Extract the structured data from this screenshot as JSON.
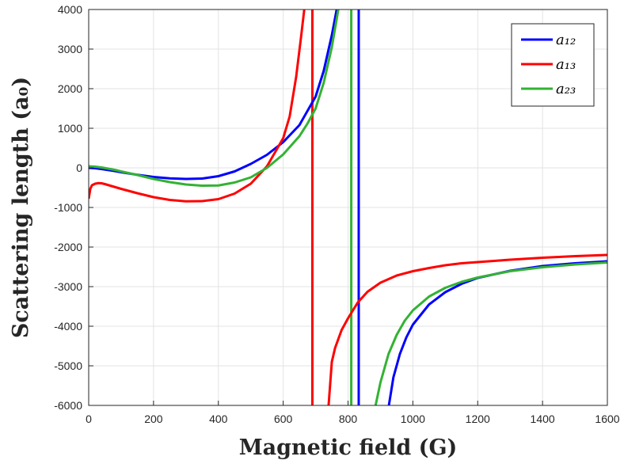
{
  "chart_data": {
    "type": "line",
    "xlabel": "Magnetic field (G)",
    "ylabel": "Scattering length (a₀)",
    "xlim": [
      0,
      1600
    ],
    "ylim": [
      -6000,
      4000
    ],
    "xticks": [
      "0",
      "200",
      "400",
      "600",
      "800",
      "1000",
      "1200",
      "1400",
      "1600"
    ],
    "yticks": [
      "-6000",
      "-5000",
      "-4000",
      "-3000",
      "-2000",
      "-1000",
      "0",
      "1000",
      "2000",
      "3000",
      "4000"
    ],
    "grid": true,
    "legend_position": "top-right",
    "series": [
      {
        "name": "a₁₂",
        "color": "#0000ff",
        "x": [
          0,
          20,
          40,
          60,
          80,
          100,
          150,
          200,
          250,
          300,
          350,
          400,
          450,
          500,
          550,
          600,
          650,
          700,
          725,
          750,
          765,
          775,
          785,
          800,
          820,
          832,
          835,
          850,
          870,
          900,
          920,
          926,
          940,
          960,
          980,
          1000,
          1050,
          1100,
          1150,
          1200,
          1300,
          1400,
          1500,
          1600
        ],
        "y": [
          0,
          -10,
          -30,
          -55,
          -80,
          -110,
          -175,
          -230,
          -265,
          -280,
          -270,
          -210,
          -90,
          100,
          330,
          650,
          1080,
          1800,
          2450,
          3350,
          4000,
          null,
          null,
          null,
          null,
          null,
          null,
          null,
          null,
          null,
          null,
          -6000,
          -5290,
          -4700,
          -4280,
          -3960,
          -3450,
          -3140,
          -2930,
          -2780,
          -2600,
          -2480,
          -2410,
          -2360
        ]
      },
      {
        "name": "a₁₃",
        "color": "#ff0000",
        "x": [
          0,
          5,
          10,
          20,
          30,
          40,
          50,
          75,
          100,
          150,
          200,
          250,
          300,
          350,
          400,
          450,
          500,
          550,
          600,
          620,
          640,
          655,
          665,
          688,
          735,
          740,
          750,
          760,
          780,
          800,
          830,
          860,
          900,
          950,
          1000,
          1050,
          1100,
          1150,
          1200,
          1300,
          1400,
          1500,
          1600
        ],
        "y": [
          -780,
          -530,
          -440,
          -400,
          -385,
          -390,
          -410,
          -470,
          -530,
          -640,
          -740,
          -810,
          -845,
          -840,
          -790,
          -650,
          -400,
          40,
          750,
          1300,
          2300,
          3300,
          4000,
          null,
          null,
          -6000,
          -4900,
          -4550,
          -4100,
          -3800,
          -3400,
          -3130,
          -2900,
          -2720,
          -2610,
          -2530,
          -2460,
          -2410,
          -2380,
          -2320,
          -2270,
          -2230,
          -2200
        ]
      },
      {
        "name": "a₂₃",
        "color": "#33b233",
        "x": [
          0,
          20,
          40,
          60,
          80,
          100,
          150,
          200,
          250,
          300,
          350,
          400,
          450,
          500,
          550,
          600,
          650,
          675,
          700,
          725,
          750,
          770,
          790,
          808,
          812,
          850,
          885,
          900,
          925,
          950,
          975,
          1000,
          1050,
          1100,
          1150,
          1200,
          1300,
          1400,
          1500,
          1600
        ],
        "y": [
          40,
          30,
          10,
          -20,
          -50,
          -90,
          -180,
          -280,
          -360,
          -420,
          -450,
          -445,
          -370,
          -240,
          0,
          340,
          800,
          1120,
          1500,
          2150,
          3050,
          4000,
          null,
          null,
          null,
          null,
          -6000,
          -5420,
          -4700,
          -4220,
          -3860,
          -3600,
          -3250,
          -3030,
          -2880,
          -2770,
          -2610,
          -2510,
          -2440,
          -2390
        ]
      }
    ],
    "vertical_lines": [
      {
        "series": "a₁₂",
        "x": 833
      },
      {
        "series": "a₁₃",
        "x": 690
      },
      {
        "series": "a₂₃",
        "x": 810
      }
    ]
  }
}
